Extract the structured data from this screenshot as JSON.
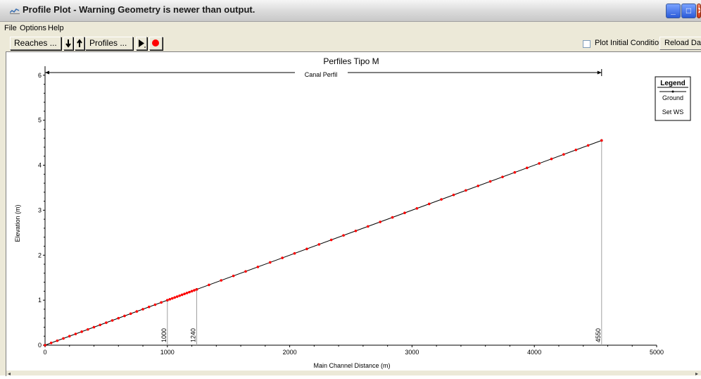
{
  "window": {
    "title": "Profile Plot - Warning Geometry is newer than output."
  },
  "menu": {
    "items": [
      "File",
      "Options",
      "Help"
    ]
  },
  "toolbar": {
    "reaches_label": "Reaches ...",
    "profiles_label": "Profiles ...",
    "plot_initial_conditions": "Plot Initial Conditions",
    "plot_initial_conditions_checked": false,
    "reload_label": "Reload Data"
  },
  "legend": {
    "title": "Legend",
    "entries": [
      "Ground",
      "Set WS"
    ]
  },
  "colors": {
    "ground": "#000000",
    "set_ws": "#ff0000",
    "station_line": "#a0a0a0"
  },
  "chart_data": {
    "type": "line",
    "title": "Perfiles Tipo M",
    "reach_label": "Canal Perfil",
    "xlabel": "Main Channel Distance (m)",
    "ylabel": "Elevation (m)",
    "xlim": [
      0,
      5000
    ],
    "ylim": [
      0,
      6.2
    ],
    "xticks": [
      0,
      1000,
      2000,
      3000,
      4000,
      5000
    ],
    "yticks": [
      0,
      1,
      2,
      3,
      4,
      5,
      6
    ],
    "reach_extent": [
      0,
      4550
    ],
    "station_labels": [
      {
        "x": 1000,
        "label": "1000"
      },
      {
        "x": 1240,
        "label": "1240"
      },
      {
        "x": 4550,
        "label": "4550"
      }
    ],
    "series": [
      {
        "name": "Ground",
        "x": [
          0,
          1000,
          1240,
          4550
        ],
        "y": [
          0.0,
          1.0,
          1.24,
          4.55
        ]
      },
      {
        "name": "Set WS",
        "x": [
          0,
          50,
          100,
          150,
          200,
          250,
          300,
          350,
          400,
          450,
          500,
          550,
          600,
          650,
          700,
          750,
          800,
          850,
          900,
          950,
          1000,
          1020,
          1040,
          1060,
          1080,
          1100,
          1120,
          1140,
          1160,
          1180,
          1200,
          1220,
          1240,
          1340,
          1440,
          1540,
          1640,
          1740,
          1840,
          1940,
          2040,
          2140,
          2240,
          2340,
          2440,
          2540,
          2640,
          2740,
          2840,
          2940,
          3040,
          3140,
          3240,
          3340,
          3440,
          3540,
          3640,
          3740,
          3840,
          3940,
          4040,
          4140,
          4240,
          4340,
          4440,
          4550
        ],
        "y": [
          0.0,
          0.05,
          0.1,
          0.15,
          0.2,
          0.25,
          0.3,
          0.35,
          0.4,
          0.45,
          0.5,
          0.55,
          0.6,
          0.65,
          0.7,
          0.75,
          0.8,
          0.85,
          0.9,
          0.95,
          1.0,
          1.02,
          1.04,
          1.06,
          1.08,
          1.1,
          1.12,
          1.14,
          1.16,
          1.18,
          1.2,
          1.22,
          1.24,
          1.34,
          1.44,
          1.54,
          1.64,
          1.74,
          1.84,
          1.94,
          2.04,
          2.14,
          2.24,
          2.34,
          2.44,
          2.54,
          2.64,
          2.74,
          2.84,
          2.94,
          3.04,
          3.14,
          3.24,
          3.34,
          3.44,
          3.54,
          3.64,
          3.74,
          3.84,
          3.94,
          4.04,
          4.14,
          4.24,
          4.34,
          4.44,
          4.55
        ]
      }
    ],
    "grid": false,
    "legend_position": "top-right"
  }
}
